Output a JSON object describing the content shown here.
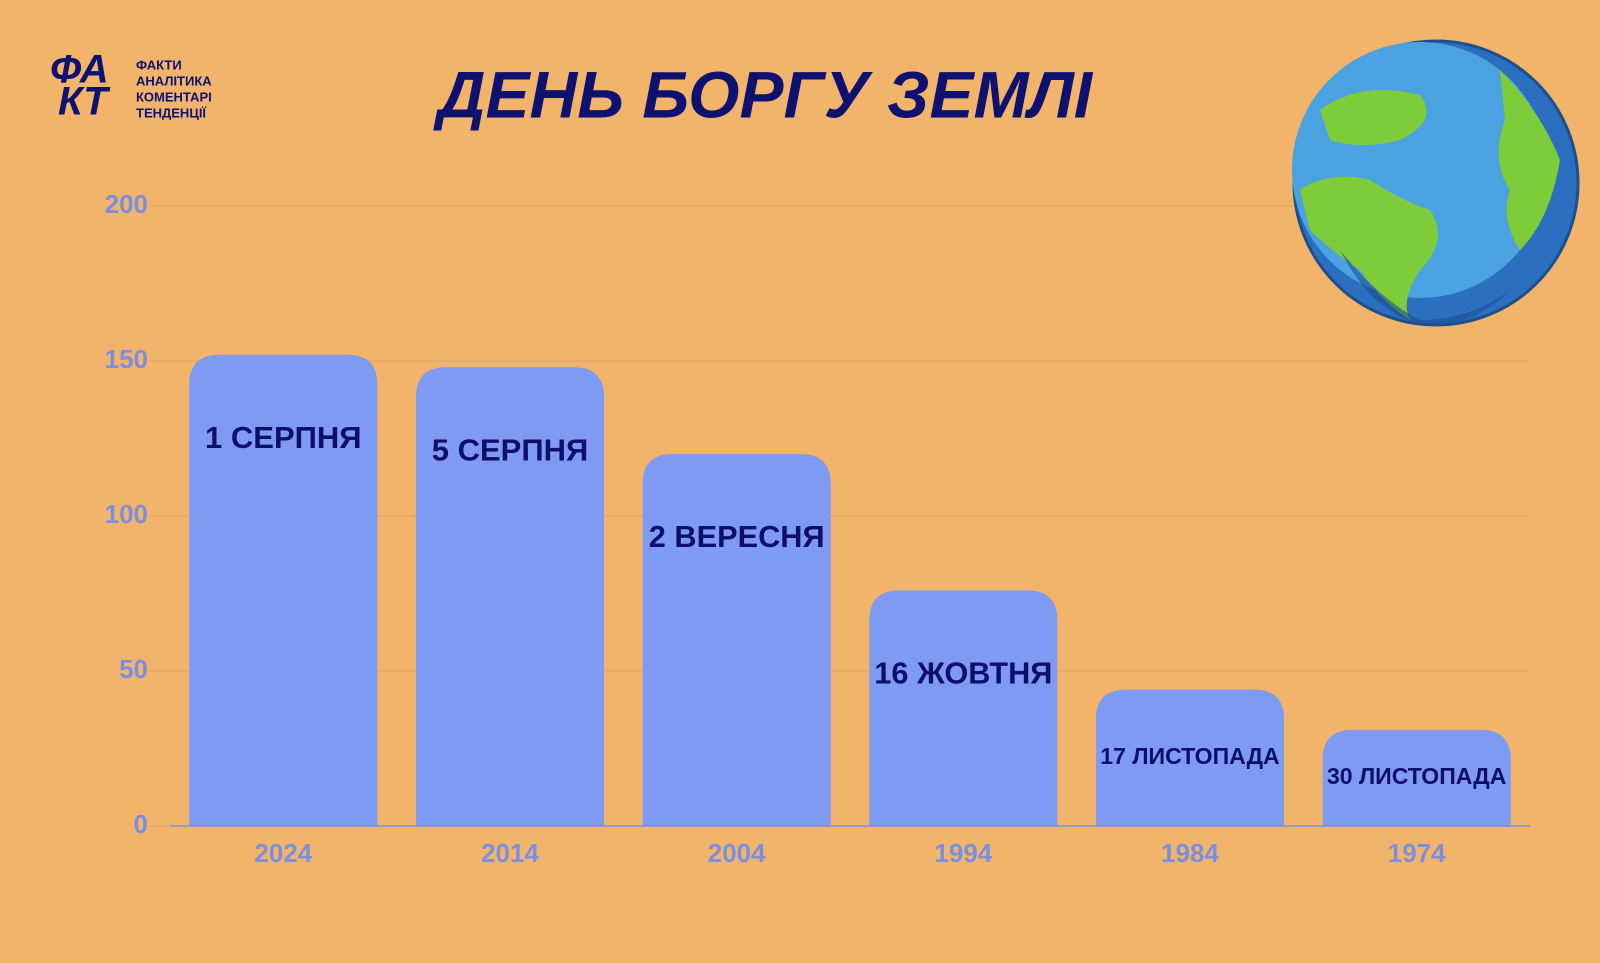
{
  "logo": {
    "mark": [
      "ФА",
      "КТ"
    ],
    "lines": [
      "ФАКТИ",
      "АНАЛІТИКА",
      "КОМЕНТАРІ",
      "ТЕНДЕНЦІЇ"
    ]
  },
  "chart_data": {
    "type": "bar",
    "title": "ДЕНЬ БОРГУ ЗЕМЛІ",
    "categories": [
      "2024",
      "2014",
      "2004",
      "1994",
      "1984",
      "1974"
    ],
    "values": [
      152,
      148,
      120,
      76,
      44,
      31
    ],
    "value_labels": [
      "1 СЕРПНЯ",
      "5 СЕРПНЯ",
      "2 ВЕРЕСНЯ",
      "16 ЖОВТНЯ",
      "17 ЛИСТОПАДА",
      "30 ЛИСТОПАДА"
    ],
    "color": "#7f9af2",
    "ylim": [
      0,
      200
    ],
    "yticks": [
      0,
      50,
      100,
      150,
      200
    ],
    "grid": true
  }
}
